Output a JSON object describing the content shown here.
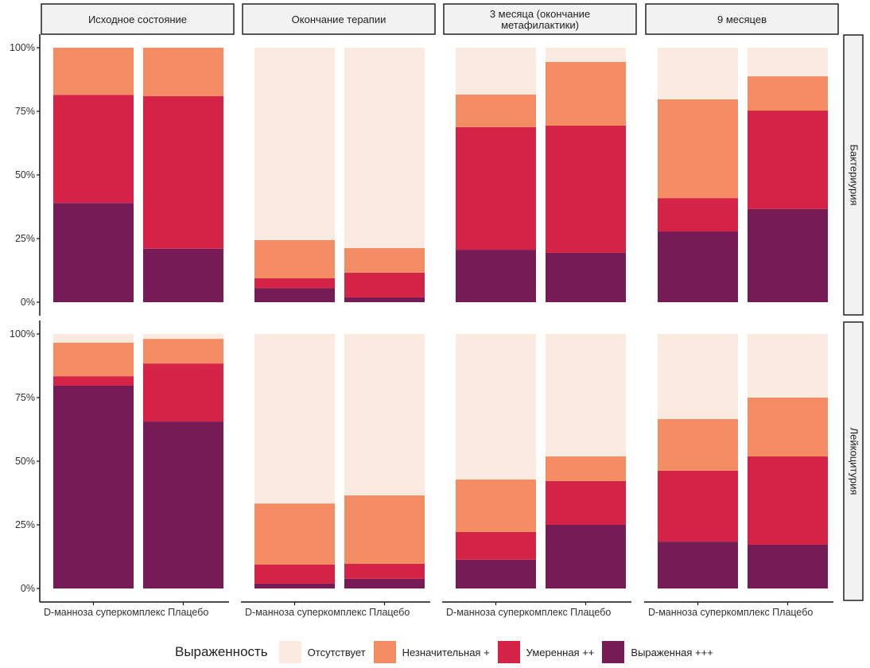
{
  "chart_data": {
    "type": "bar",
    "stacked": true,
    "percent": true,
    "facet_columns": [
      "Исходное состояние",
      "Окончание терапии",
      "3 месяца (окончание метафилактики)",
      "9 месяцев"
    ],
    "facet_rows": [
      "Бактериурия",
      "Лейкоцитурия"
    ],
    "categories": [
      "D-манноза суперкомплекс",
      "Плацебо"
    ],
    "yticks": [
      "0%",
      "25%",
      "50%",
      "75%",
      "100%"
    ],
    "ylim": [
      0,
      100
    ],
    "legend_title": "Выраженность",
    "legend_position": "bottom",
    "levels": [
      {
        "name": "Отсутствует",
        "color": "#FBEAE0"
      },
      {
        "name": "Незначительная +",
        "color": "#F38C63"
      },
      {
        "name": "Умеренная ++",
        "color": "#D52247"
      },
      {
        "name": "Выраженная +++",
        "color": "#761B55"
      }
    ],
    "panels": [
      {
        "row": "Бактериурия",
        "column": "Исходное состояние",
        "bars": [
          {
            "category": "D-манноза суперкомплекс",
            "Выраженная +++": 39.0,
            "Умеренная ++": 42.5,
            "Незначительная +": 18.5,
            "Отсутствует": 0.0
          },
          {
            "category": "Плацебо",
            "Выраженная +++": 21.0,
            "Умеренная ++": 60.0,
            "Незначительная +": 19.0,
            "Отсутствует": 0.0
          }
        ]
      },
      {
        "row": "Бактериурия",
        "column": "Окончание терапии",
        "bars": [
          {
            "category": "D-манноза суперкомплекс",
            "Выраженная +++": 5.5,
            "Умеренная ++": 3.9,
            "Незначительная +": 15.0,
            "Отсутствует": 75.6
          },
          {
            "category": "Плацебо",
            "Выраженная +++": 1.9,
            "Умеренная ++": 9.7,
            "Незначительная +": 9.7,
            "Отсутствует": 78.7
          }
        ]
      },
      {
        "row": "Бактериурия",
        "column": "3 месяца (окончание метафилактики)",
        "bars": [
          {
            "category": "D-манноза суперкомплекс",
            "Выраженная +++": 20.6,
            "Умеренная ++": 48.2,
            "Незначительная +": 12.8,
            "Отсутствует": 18.4
          },
          {
            "category": "Плацебо",
            "Выраженная +++": 19.4,
            "Умеренная ++": 50.0,
            "Незначительная +": 25.0,
            "Отсутствует": 5.6
          }
        ]
      },
      {
        "row": "Бактериурия",
        "column": "9 месяцев",
        "bars": [
          {
            "category": "D-манноза суперкомплекс",
            "Выраженная +++": 27.8,
            "Умеренная ++": 13.1,
            "Незначительная +": 38.8,
            "Отсутствует": 20.3
          },
          {
            "category": "Плацебо",
            "Выраженная +++": 36.6,
            "Умеренная ++": 38.7,
            "Незначительная +": 13.5,
            "Отсутствует": 11.2
          }
        ]
      },
      {
        "row": "Лейкоцитурия",
        "column": "Исходное состояние",
        "bars": [
          {
            "category": "D-манноза суперкомплекс",
            "Выраженная +++": 79.7,
            "Умеренная ++": 3.7,
            "Незначительная +": 13.2,
            "Отсутствует": 3.4
          },
          {
            "category": "Плацебо",
            "Выраженная +++": 65.6,
            "Умеренная ++": 22.8,
            "Незначительная +": 9.7,
            "Отсутствует": 1.9
          }
        ]
      },
      {
        "row": "Лейкоцитурия",
        "column": "Окончание терапии",
        "bars": [
          {
            "category": "D-манноза суперкомплекс",
            "Выраженная +++": 1.9,
            "Умеренная ++": 7.5,
            "Незначительная +": 24.0,
            "Отсутствует": 66.6
          },
          {
            "category": "Плацебо",
            "Выраженная +++": 3.8,
            "Умеренная ++": 5.9,
            "Незначительная +": 26.9,
            "Отсутствует": 63.4
          }
        ]
      },
      {
        "row": "Лейкоцитурия",
        "column": "3 месяца (окончание метафилактики)",
        "bars": [
          {
            "category": "D-манноза суперкомплекс",
            "Выраженная +++": 11.3,
            "Умеренная ++": 10.9,
            "Незначительная +": 20.6,
            "Отсутствует": 57.2
          },
          {
            "category": "Плацебо",
            "Выраженная +++": 25.0,
            "Умеренная ++": 17.2,
            "Незначительная +": 9.7,
            "Отсутствует": 48.1
          }
        ]
      },
      {
        "row": "Лейкоцитурия",
        "column": "9 месяцев",
        "bars": [
          {
            "category": "D-манноза суперкомплекс",
            "Выраженная +++": 18.4,
            "Умеренная ++": 27.9,
            "Незначительная +": 20.3,
            "Отсутствует": 33.4
          },
          {
            "category": "Плацебо",
            "Выраженная +++": 17.2,
            "Умеренная ++": 34.7,
            "Незначительная +": 23.1,
            "Отсутствует": 25.0
          }
        ]
      }
    ]
  }
}
